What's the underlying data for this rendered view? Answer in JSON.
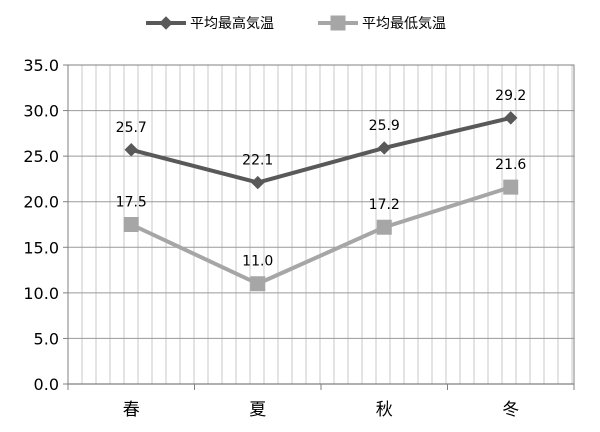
{
  "chart_data": {
    "type": "line",
    "title": "",
    "xlabel": "",
    "ylabel": "",
    "categories": [
      "春",
      "夏",
      "秋",
      "冬"
    ],
    "ylim": [
      0,
      35
    ],
    "y_ticks": [
      "0.0",
      "5.0",
      "10.0",
      "15.0",
      "20.0",
      "25.0",
      "30.0",
      "35.0"
    ],
    "grid": "on",
    "legend_position": "top",
    "series": [
      {
        "name": "平均最高気温",
        "values": [
          25.7,
          22.1,
          25.9,
          29.2
        ],
        "labels": [
          "25.7",
          "22.1",
          "25.9",
          "29.2"
        ],
        "color": "#595959",
        "marker": "diamond"
      },
      {
        "name": "平均最低気温",
        "values": [
          17.5,
          11.0,
          17.2,
          21.6
        ],
        "labels": [
          "17.5",
          "11.0",
          "17.2",
          "21.6"
        ],
        "color": "#a6a6a6",
        "marker": "square"
      }
    ]
  }
}
